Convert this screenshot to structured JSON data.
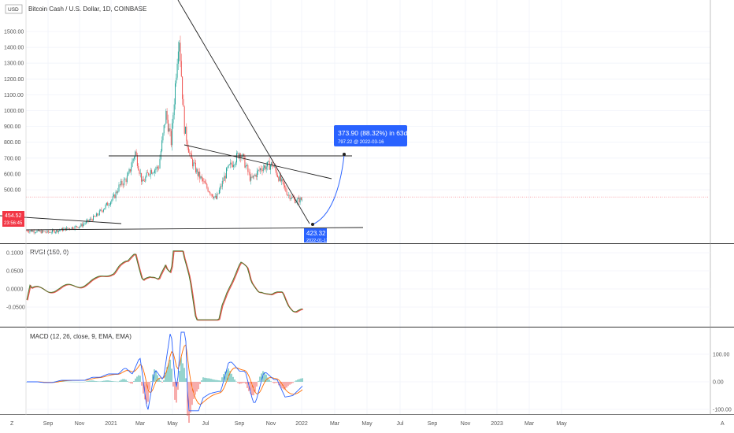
{
  "header": {
    "title": "Bitcoin Cash / U.S. Dollar, 1D, COINBASE",
    "currency_badge": "USD"
  },
  "price_badge": {
    "price": "454.52",
    "countdown": "23:56:45",
    "color": "#f23645"
  },
  "projection": {
    "label_main": "373.90 (88.32%) in 63d 1h",
    "label_sub": "797.22 @ 2022-03-16",
    "start_price": "423.32",
    "start_date": "2022-01-13",
    "color": "#2962ff"
  },
  "indicators": {
    "rvgi": {
      "title": "RVGI (150, 0)",
      "ticks": [
        "0.1000",
        "0.0500",
        "0.0000",
        "-0.0500"
      ]
    },
    "macd": {
      "title": "MACD (12, 26, close, 9, EMA, EMA)",
      "ticks": [
        "100.00",
        "0.00",
        "-100.00"
      ]
    }
  },
  "bottom_bar": {
    "left_btn": "Z",
    "right_btn": "A"
  },
  "chart_data": {
    "type": "candlestick",
    "title": "Bitcoin Cash / U.S. Dollar, 1D, COINBASE",
    "y_ticks": [
      1500,
      1400,
      1300,
      1200,
      1100,
      1000,
      900,
      800,
      700,
      600,
      500
    ],
    "y_tick_labels": [
      "1500.00",
      "1400.00",
      "1300.00",
      "1200.00",
      "1100.00",
      "1000.00",
      "900.00",
      "800.00",
      "700.00",
      "600.00",
      "500.00"
    ],
    "x_tick_labels": [
      "Sep",
      "Nov",
      "2021",
      "Mar",
      "May",
      "Jul",
      "Sep",
      "Nov",
      "2022",
      "Mar",
      "May",
      "Jul",
      "Sep",
      "Nov",
      "2023",
      "Mar",
      "May"
    ],
    "price_line": 454.52,
    "colors": {
      "up": "#26a69a",
      "down": "#ef5350",
      "rvgi_main": "#26a69a",
      "rvgi_signal": "#ef5350",
      "macd": "#2962ff",
      "signal": "#ff6d00"
    },
    "price_path": [
      {
        "date": "2020-08",
        "close": 240
      },
      {
        "date": "2020-09",
        "close": 230
      },
      {
        "date": "2020-10",
        "close": 250
      },
      {
        "date": "2020-11",
        "close": 270
      },
      {
        "date": "2020-12",
        "close": 330
      },
      {
        "date": "2021-01-05",
        "close": 450
      },
      {
        "date": "2021-01-15",
        "close": 520
      },
      {
        "date": "2021-02-01",
        "close": 580
      },
      {
        "date": "2021-02-15",
        "close": 740
      },
      {
        "date": "2021-03-01",
        "close": 540
      },
      {
        "date": "2021-03-15",
        "close": 620
      },
      {
        "date": "2021-04-01",
        "close": 640
      },
      {
        "date": "2021-04-15",
        "close": 980
      },
      {
        "date": "2021-04-25",
        "close": 800
      },
      {
        "date": "2021-05-10",
        "close": 1500
      },
      {
        "date": "2021-05-20",
        "close": 900
      },
      {
        "date": "2021-06-01",
        "close": 700
      },
      {
        "date": "2021-06-15",
        "close": 600
      },
      {
        "date": "2021-07-01",
        "close": 520
      },
      {
        "date": "2021-07-20",
        "close": 440
      },
      {
        "date": "2021-08-10",
        "close": 620
      },
      {
        "date": "2021-09-05",
        "close": 740
      },
      {
        "date": "2021-09-25",
        "close": 560
      },
      {
        "date": "2021-10-15",
        "close": 640
      },
      {
        "date": "2021-11-05",
        "close": 660
      },
      {
        "date": "2021-11-20",
        "close": 560
      },
      {
        "date": "2021-12-05",
        "close": 470
      },
      {
        "date": "2021-12-20",
        "close": 430
      },
      {
        "date": "2022-01-01",
        "close": 440
      }
    ]
  }
}
